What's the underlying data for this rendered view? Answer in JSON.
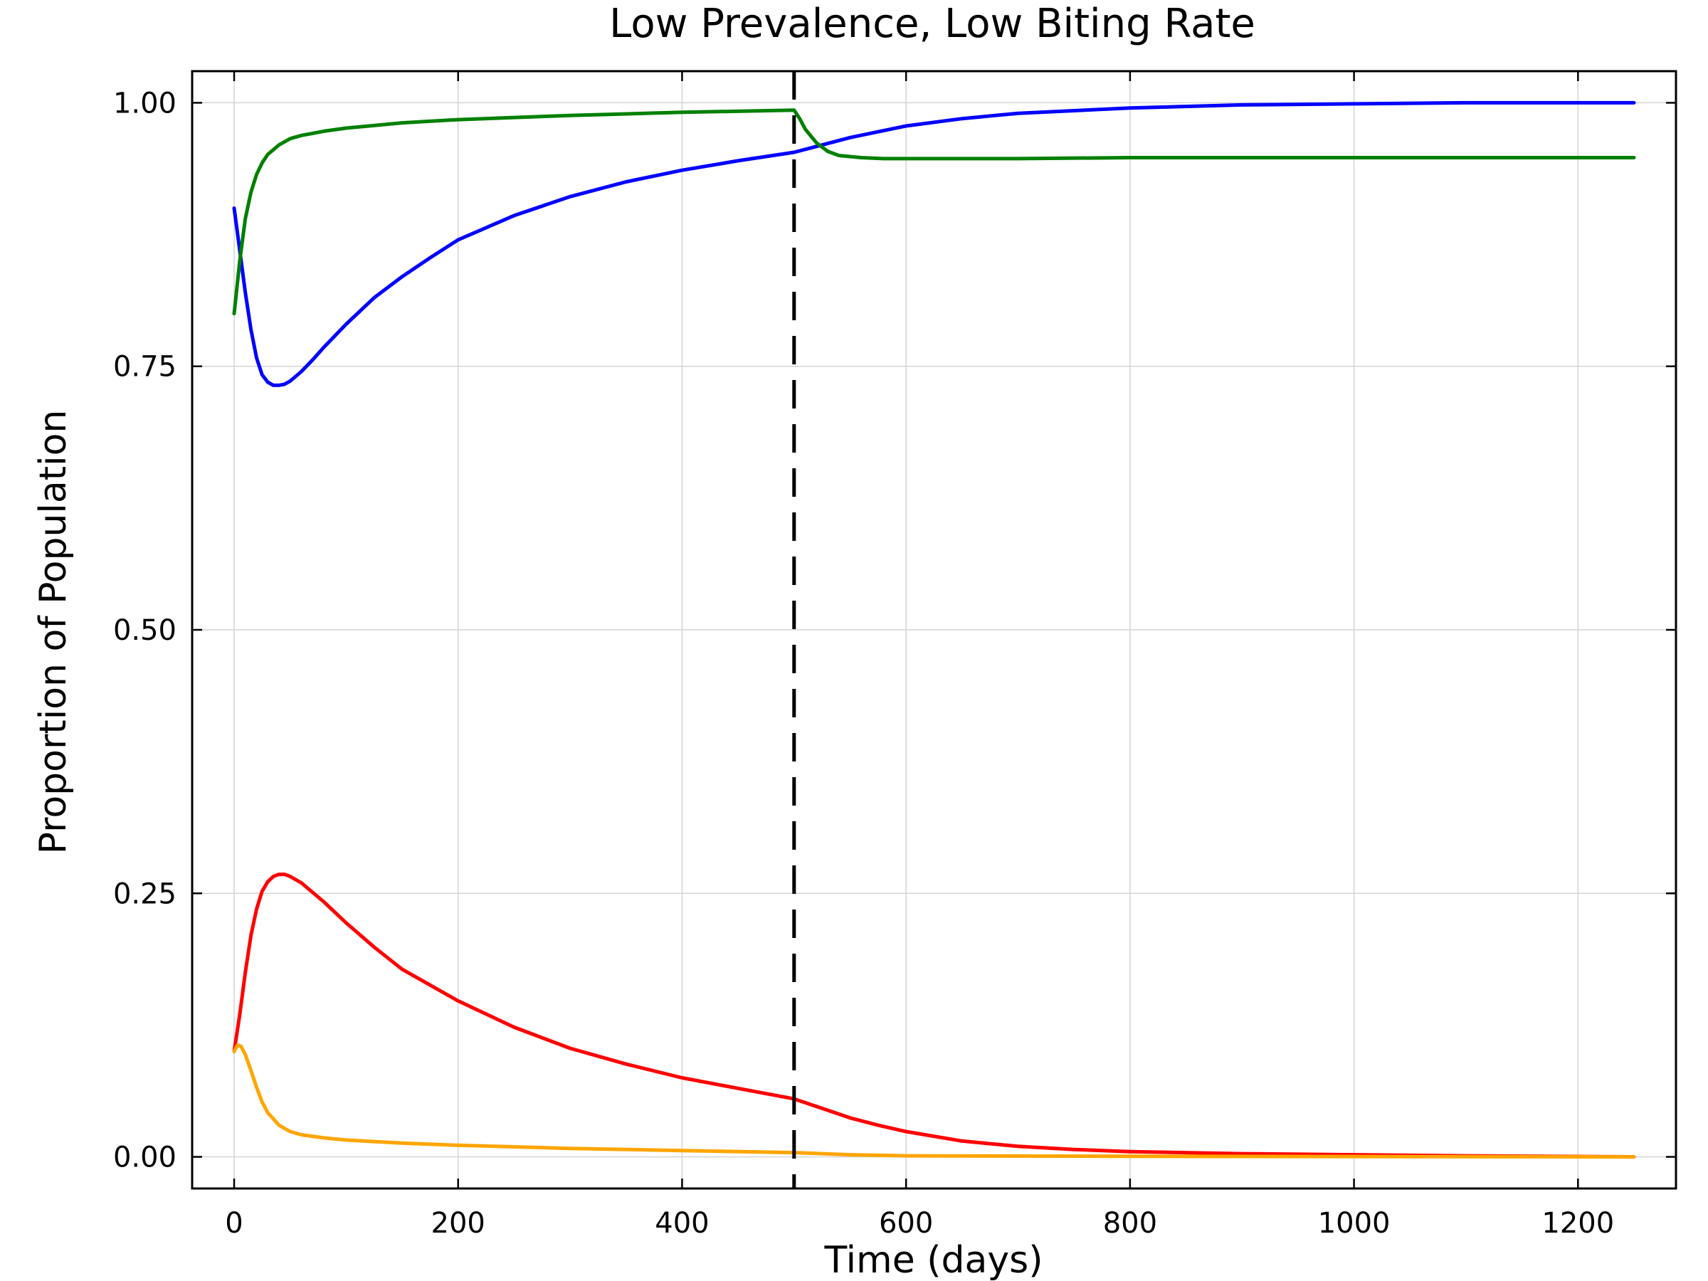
{
  "chart_data": {
    "type": "line",
    "title": "Low Prevalence, Low Biting Rate",
    "xlabel": "Time (days)",
    "ylabel": "Proportion of Population",
    "xlim": [
      -37.5,
      1287.5
    ],
    "ylim": [
      -0.03,
      1.03
    ],
    "xticks": [
      0,
      200,
      400,
      600,
      800,
      1000,
      1200
    ],
    "xtick_labels": [
      "0",
      "200",
      "400",
      "600",
      "800",
      "1000",
      "1200"
    ],
    "yticks": [
      0.0,
      0.25,
      0.5,
      0.75,
      1.0
    ],
    "ytick_labels": [
      "0.00",
      "0.25",
      "0.50",
      "0.75",
      "1.00"
    ],
    "grid": true,
    "vertical_marker": {
      "x": 500,
      "style": "dashed",
      "color": "#000000"
    },
    "series": [
      {
        "color": "#0000ff",
        "x": [
          0,
          5,
          10,
          15,
          20,
          25,
          30,
          35,
          40,
          45,
          50,
          60,
          70,
          80,
          100,
          125,
          150,
          175,
          200,
          250,
          300,
          350,
          400,
          450,
          500,
          525,
          550,
          600,
          650,
          700,
          800,
          900,
          1000,
          1100,
          1250
        ],
        "y": [
          0.9,
          0.86,
          0.82,
          0.785,
          0.758,
          0.742,
          0.735,
          0.732,
          0.732,
          0.733,
          0.736,
          0.745,
          0.756,
          0.768,
          0.79,
          0.815,
          0.835,
          0.853,
          0.87,
          0.893,
          0.911,
          0.925,
          0.936,
          0.945,
          0.953,
          0.96,
          0.967,
          0.978,
          0.985,
          0.99,
          0.995,
          0.998,
          0.999,
          1.0,
          1.0
        ]
      },
      {
        "color": "#008000",
        "x": [
          0,
          5,
          10,
          15,
          20,
          25,
          30,
          40,
          50,
          60,
          70,
          80,
          100,
          150,
          200,
          300,
          400,
          500,
          505,
          510,
          520,
          530,
          540,
          560,
          580,
          600,
          700,
          800,
          1000,
          1250
        ],
        "y": [
          0.8,
          0.85,
          0.89,
          0.915,
          0.932,
          0.943,
          0.951,
          0.96,
          0.966,
          0.969,
          0.971,
          0.973,
          0.976,
          0.981,
          0.984,
          0.988,
          0.991,
          0.993,
          0.985,
          0.975,
          0.962,
          0.954,
          0.95,
          0.948,
          0.947,
          0.947,
          0.947,
          0.948,
          0.948,
          0.948
        ]
      },
      {
        "color": "#ff0000",
        "x": [
          0,
          5,
          10,
          15,
          20,
          25,
          30,
          35,
          40,
          45,
          50,
          60,
          80,
          100,
          125,
          150,
          200,
          250,
          300,
          350,
          400,
          450,
          500,
          525,
          550,
          575,
          600,
          650,
          700,
          750,
          800,
          900,
          1000,
          1100,
          1250
        ],
        "y": [
          0.1,
          0.135,
          0.175,
          0.21,
          0.235,
          0.252,
          0.261,
          0.266,
          0.268,
          0.268,
          0.266,
          0.26,
          0.242,
          0.222,
          0.199,
          0.178,
          0.148,
          0.123,
          0.103,
          0.088,
          0.075,
          0.065,
          0.055,
          0.046,
          0.037,
          0.03,
          0.024,
          0.015,
          0.01,
          0.007,
          0.005,
          0.003,
          0.002,
          0.001,
          0.0
        ]
      },
      {
        "color": "#ffa500",
        "x": [
          0,
          3,
          6,
          10,
          15,
          20,
          25,
          30,
          40,
          50,
          60,
          80,
          100,
          150,
          200,
          300,
          400,
          500,
          550,
          600,
          800,
          1000,
          1250
        ],
        "y": [
          0.1,
          0.106,
          0.105,
          0.097,
          0.082,
          0.066,
          0.052,
          0.042,
          0.03,
          0.024,
          0.021,
          0.018,
          0.016,
          0.013,
          0.011,
          0.008,
          0.006,
          0.004,
          0.002,
          0.001,
          0.0005,
          0.0003,
          0.0
        ]
      }
    ]
  }
}
